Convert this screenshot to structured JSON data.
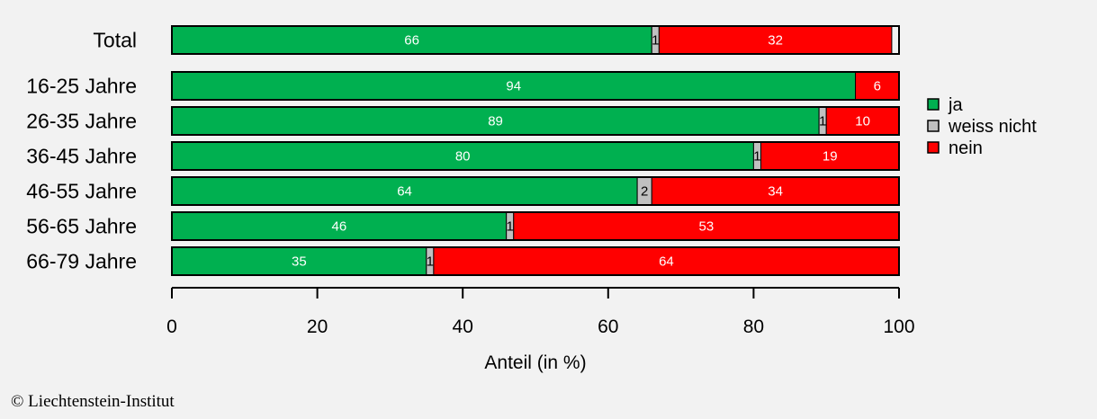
{
  "chart_data": {
    "type": "bar",
    "orientation": "horizontal",
    "stacked": true,
    "categories": [
      "Total",
      "16-25 Jahre",
      "26-35 Jahre",
      "36-45 Jahre",
      "46-55 Jahre",
      "56-65 Jahre",
      "66-79 Jahre"
    ],
    "series": [
      {
        "name": "ja",
        "color": "#00b050",
        "values": [
          66,
          94,
          89,
          80,
          64,
          46,
          35
        ],
        "labels": [
          "66",
          "94",
          "89",
          "80",
          "64",
          "46",
          "35"
        ]
      },
      {
        "name": "weiss nicht",
        "color": "#c0c0c0",
        "values": [
          1,
          0,
          1,
          1,
          2,
          1,
          1
        ],
        "labels": [
          "1",
          "",
          "1",
          "1",
          "2",
          "1",
          "1"
        ]
      },
      {
        "name": "nein",
        "color": "#ff0000",
        "values": [
          32,
          6,
          10,
          19,
          34,
          53,
          64
        ],
        "labels": [
          "32",
          "6",
          "10",
          "19",
          "34",
          "53",
          "64"
        ]
      }
    ],
    "xlabel": "Anteil (in %)",
    "xlim": [
      0,
      100
    ],
    "xticks": [
      "0",
      "20",
      "40",
      "60",
      "80",
      "100"
    ],
    "legend_position": "right",
    "grid": false
  },
  "credit": "© Liechtenstein-Institut"
}
